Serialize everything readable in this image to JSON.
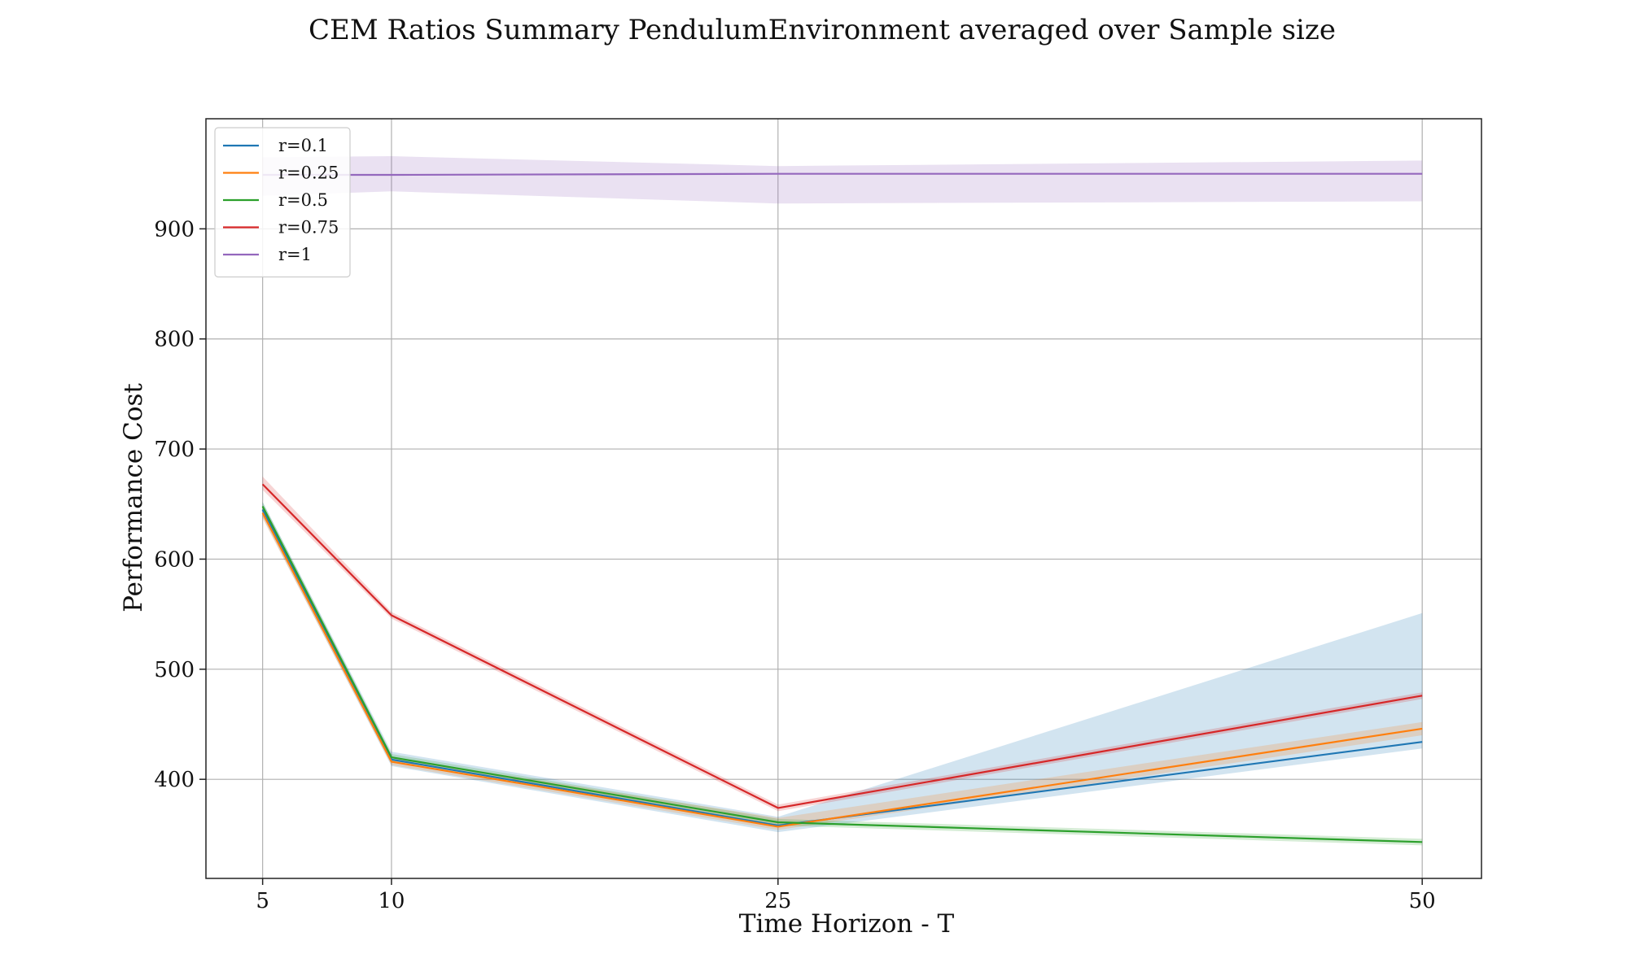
{
  "chart_data": {
    "type": "line",
    "title": "CEM Ratios Summary PendulumEnvironment averaged over Sample size",
    "xlabel": "Time Horizon - T",
    "ylabel": "Performance Cost",
    "x": [
      5,
      10,
      25,
      50
    ],
    "xticks": [
      "5",
      "10",
      "25",
      "50"
    ],
    "yticks": [
      "400",
      "500",
      "600",
      "700",
      "800",
      "900"
    ],
    "ytick_values": [
      400,
      500,
      600,
      700,
      800,
      900
    ],
    "xlim": [
      2.8,
      52.3
    ],
    "ylim": [
      310,
      1000
    ],
    "grid": true,
    "legend_position": "upper-left",
    "series": [
      {
        "name": "r=0.1",
        "color": "#1f77b4",
        "values": [
          645,
          418,
          358,
          434
        ],
        "band_lower": [
          638,
          412,
          352,
          428
        ],
        "band_upper": [
          652,
          425,
          366,
          551
        ]
      },
      {
        "name": "r=0.25",
        "color": "#ff7f0e",
        "values": [
          642,
          416,
          357,
          446
        ],
        "band_lower": [
          637,
          413,
          354,
          440
        ],
        "band_upper": [
          647,
          420,
          365,
          452
        ]
      },
      {
        "name": "r=0.5",
        "color": "#2ca02c",
        "values": [
          648,
          420,
          361,
          343
        ],
        "band_lower": [
          644,
          417,
          358,
          340
        ],
        "band_upper": [
          652,
          423,
          364,
          346
        ]
      },
      {
        "name": "r=0.75",
        "color": "#d62728",
        "values": [
          668,
          549,
          374,
          476
        ],
        "band_lower": [
          663,
          546,
          371,
          473
        ],
        "band_upper": [
          675,
          552,
          377,
          479
        ]
      },
      {
        "name": "r=1",
        "color": "#9467bd",
        "values": [
          949,
          949,
          950,
          950
        ],
        "band_lower": [
          930,
          934,
          923,
          925
        ],
        "band_upper": [
          965,
          966,
          957,
          962
        ]
      }
    ]
  }
}
